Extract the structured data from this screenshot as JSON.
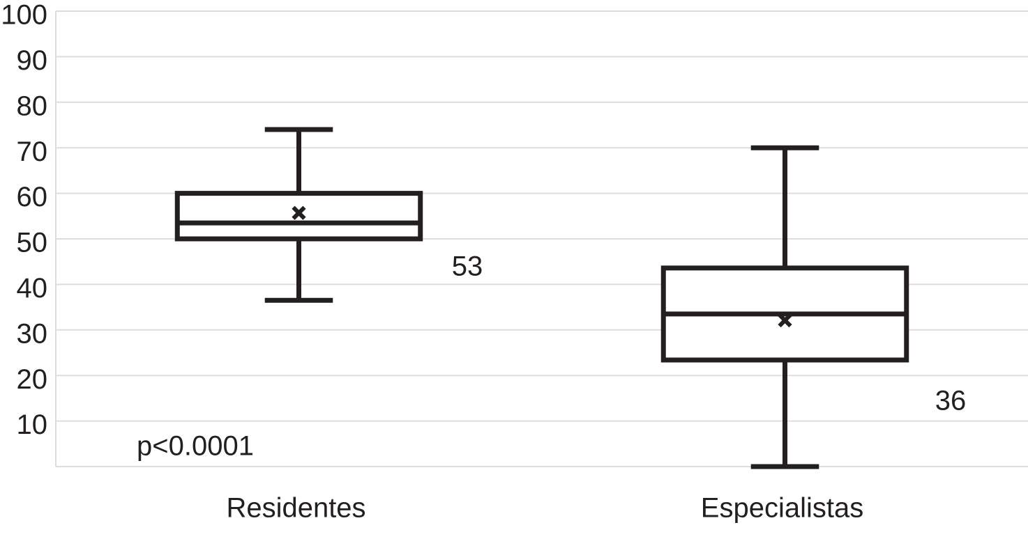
{
  "chart_data": {
    "type": "box",
    "categories": [
      "Residentes",
      "Especialistas"
    ],
    "boxes": [
      {
        "whisker_low": 36.5,
        "q1": 50,
        "median": 53.5,
        "q3": 60,
        "whisker_high": 74,
        "mean": 55.7
      },
      {
        "whisker_low": 0,
        "q1": 23.4,
        "median": 33.5,
        "q3": 43.6,
        "whisker_high": 70,
        "mean": 32.1
      }
    ],
    "color": "#231f20",
    "ylim": [
      0,
      100
    ],
    "yticks": [
      10,
      20,
      30,
      40,
      50,
      60,
      70,
      80,
      90,
      100
    ],
    "grid": true,
    "annotations": [
      "53",
      "36",
      "p<0.0001"
    ]
  }
}
